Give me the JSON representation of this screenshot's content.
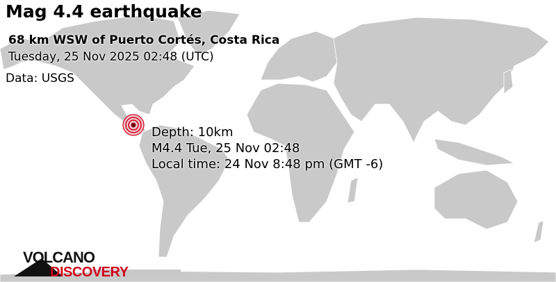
{
  "header": {
    "title": "Mag 4.4 earthquake",
    "location": "68 km WSW of Puerto Cortés, Costa Rica",
    "datetime": "Tuesday, 25 Nov 2025 02:48 (UTC)",
    "source": "Data: USGS"
  },
  "quake": {
    "depth": "Depth: 10km",
    "summary": "M4.4 Tue, 25 Nov 02:48",
    "local_time": "Local time: 24 Nov 8:48 pm (GMT -6)",
    "marker_color": "#d0021b",
    "marker_icon": "epicenter-rings-icon"
  },
  "colors": {
    "land": "#c9c9c9",
    "ocean": "#ffffff",
    "logo_black": "#111111",
    "logo_red": "#d0021b"
  },
  "logo": {
    "line1": "VOLCANO",
    "line2": "DISCOVERY"
  }
}
